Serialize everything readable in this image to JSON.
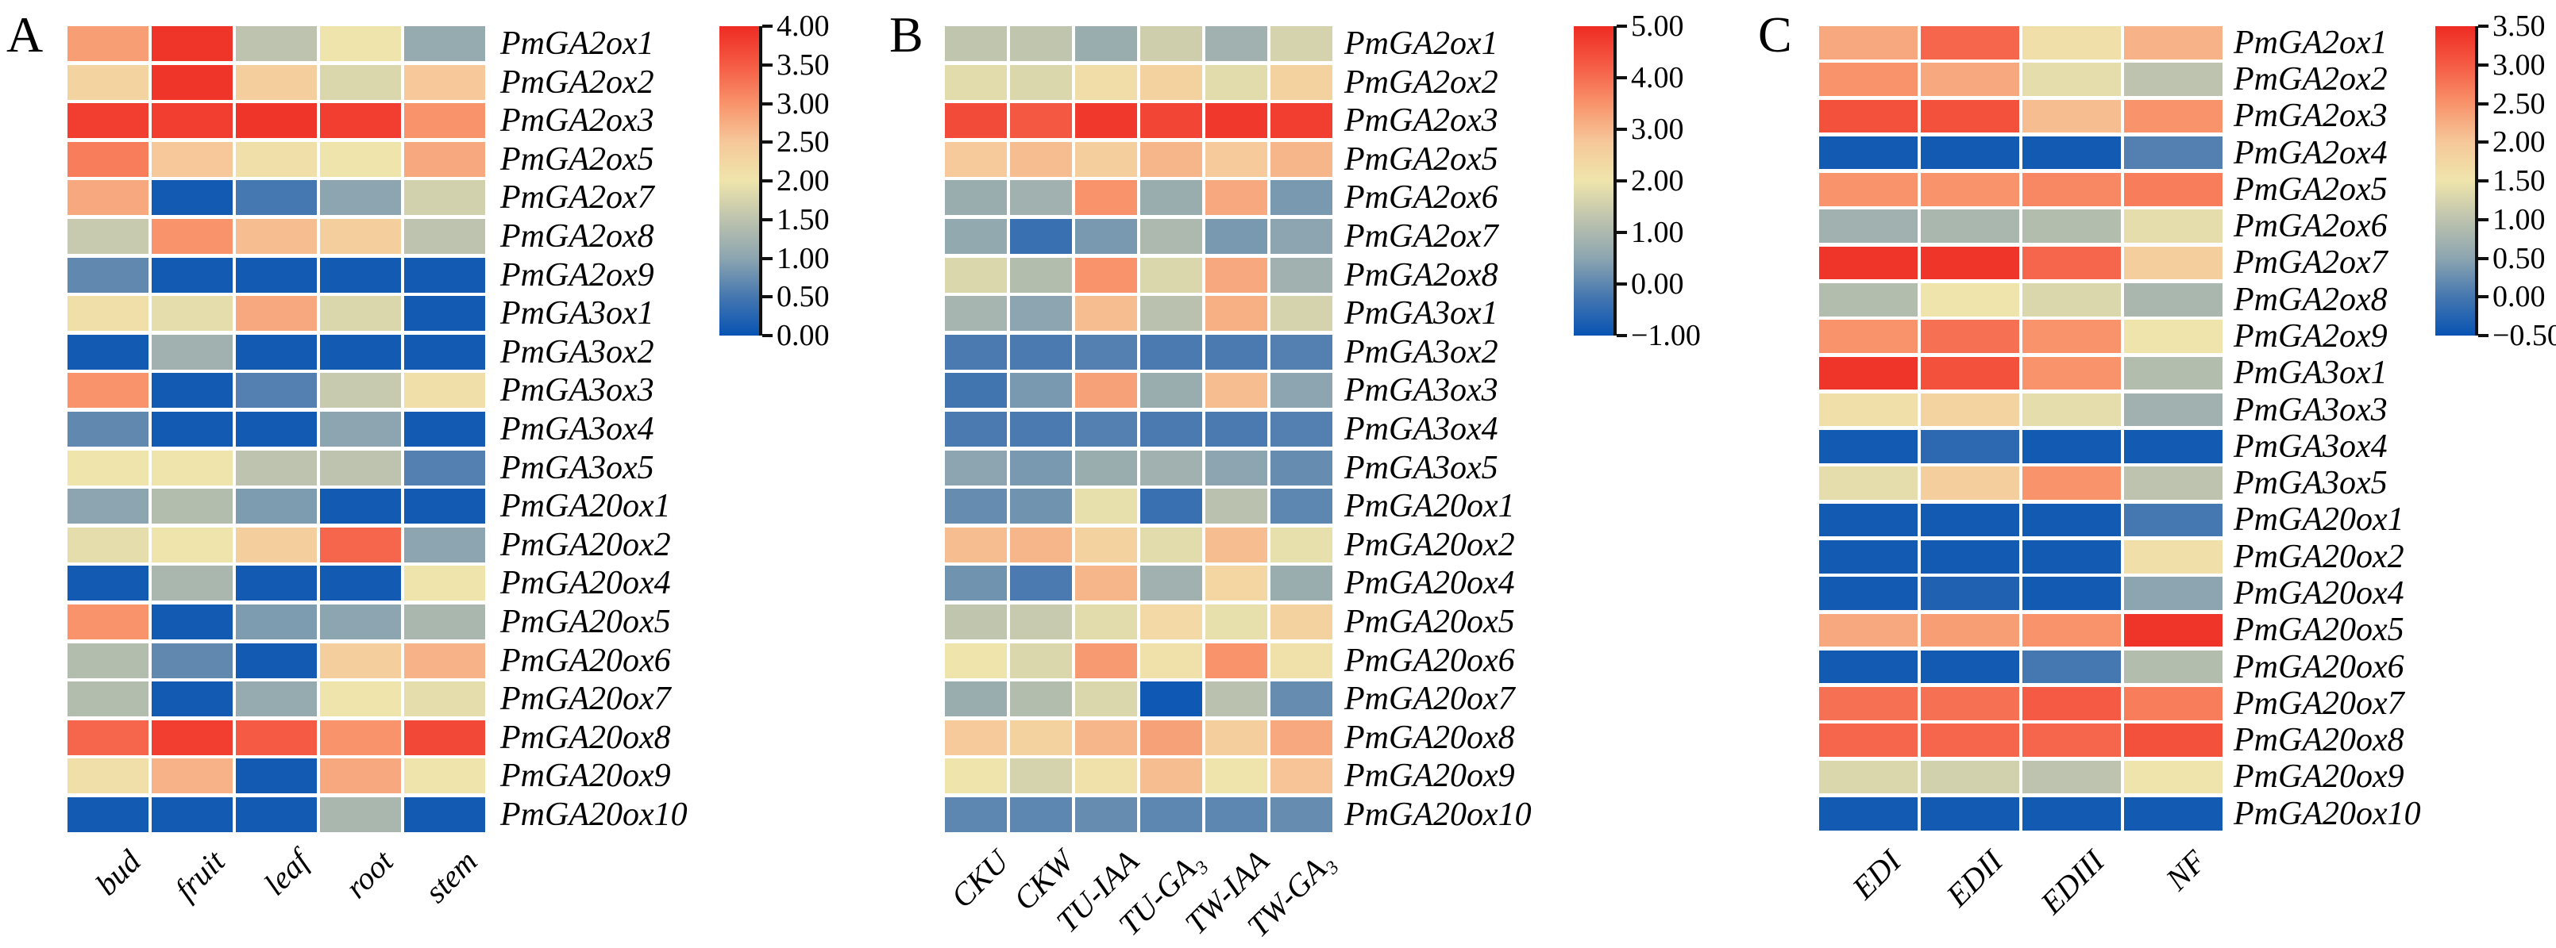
{
  "figure": {
    "background": "#ffffff",
    "text_color": "#000000",
    "colormap": {
      "low_to_high": "blue-gray-yellow-orange-red",
      "stops": [
        {
          "t": 0.0,
          "color": "#0753B3"
        },
        {
          "t": 0.125,
          "color": "#4577B0"
        },
        {
          "t": 0.25,
          "color": "#8CA5B0"
        },
        {
          "t": 0.375,
          "color": "#BDC3AE"
        },
        {
          "t": 0.5,
          "color": "#EFE5AC"
        },
        {
          "t": 0.625,
          "color": "#F6C89A"
        },
        {
          "t": 0.75,
          "color": "#F8936B"
        },
        {
          "t": 0.875,
          "color": "#F55B44"
        },
        {
          "t": 1.0,
          "color": "#EE2B23"
        }
      ]
    }
  },
  "chart_data": [
    {
      "type": "heatmap",
      "panel_label": "A",
      "x_categories": [
        "bud",
        "fruit",
        "leaf",
        "root",
        "stem"
      ],
      "y_categories": [
        "PmGA2ox1",
        "PmGA2ox2",
        "PmGA2ox3",
        "PmGA2ox5",
        "PmGA2ox7",
        "PmGA2ox8",
        "PmGA2ox9",
        "PmGA3ox1",
        "PmGA3ox2",
        "PmGA3ox3",
        "PmGA3ox4",
        "PmGA3ox5",
        "PmGA20ox1",
        "PmGA20ox2",
        "PmGA20ox4",
        "PmGA20ox5",
        "PmGA20ox6",
        "PmGA20ox7",
        "PmGA20ox8",
        "PmGA20ox9",
        "PmGA20ox10"
      ],
      "values": [
        [
          2.9,
          3.9,
          1.5,
          2.0,
          1.1
        ],
        [
          2.3,
          3.9,
          2.4,
          1.8,
          2.5
        ],
        [
          3.8,
          3.8,
          3.9,
          3.8,
          3.0
        ],
        [
          3.2,
          2.5,
          2.1,
          2.0,
          2.8
        ],
        [
          2.8,
          0.1,
          0.5,
          1.0,
          1.7
        ],
        [
          1.6,
          3.0,
          2.6,
          2.4,
          1.5
        ],
        [
          0.7,
          0.1,
          0.1,
          0.1,
          0.1
        ],
        [
          2.1,
          1.9,
          2.8,
          1.8,
          0.1
        ],
        [
          0.1,
          1.2,
          0.1,
          0.1,
          0.1
        ],
        [
          3.0,
          0.1,
          0.6,
          1.6,
          2.1
        ],
        [
          0.7,
          0.1,
          0.1,
          1.0,
          0.1
        ],
        [
          2.0,
          2.0,
          1.5,
          1.5,
          0.6
        ],
        [
          1.0,
          1.4,
          0.9,
          0.1,
          0.1
        ],
        [
          1.9,
          2.0,
          2.4,
          3.4,
          1.0
        ],
        [
          0.1,
          1.3,
          0.1,
          0.1,
          2.0
        ],
        [
          3.0,
          0.1,
          0.9,
          1.0,
          1.3
        ],
        [
          1.4,
          0.7,
          0.1,
          2.4,
          2.7
        ],
        [
          1.4,
          0.1,
          1.1,
          2.0,
          1.9
        ],
        [
          3.4,
          3.8,
          3.5,
          3.0,
          3.7
        ],
        [
          2.1,
          2.7,
          0.1,
          2.8,
          2.0
        ],
        [
          0.1,
          0.1,
          0.1,
          1.3,
          0.1
        ]
      ],
      "colorbar": {
        "min": 0,
        "max": 4,
        "tick_labels": [
          "4.00",
          "3.50",
          "3.00",
          "2.50",
          "2.00",
          "1.50",
          "1.00",
          "0.50",
          "0.00"
        ]
      },
      "legend_position": "right"
    },
    {
      "type": "heatmap",
      "panel_label": "B",
      "x_categories": [
        "CKU",
        "CKW",
        "TU-IAA",
        "TU-GA₃",
        "TW-IAA",
        "TW-GA₃"
      ],
      "y_categories": [
        "PmGA2ox1",
        "PmGA2ox2",
        "PmGA2ox3",
        "PmGA2ox5",
        "PmGA2ox6",
        "PmGA2ox7",
        "PmGA2ox8",
        "PmGA3ox1",
        "PmGA3ox2",
        "PmGA3ox3",
        "PmGA3ox4",
        "PmGA3ox5",
        "PmGA20ox1",
        "PmGA20ox2",
        "PmGA20ox4",
        "PmGA20ox5",
        "PmGA20ox6",
        "PmGA20ox7",
        "PmGA20ox8",
        "PmGA20ox9",
        "PmGA20ox10"
      ],
      "values": [
        [
          1.3,
          1.3,
          0.7,
          1.5,
          0.8,
          1.6
        ],
        [
          1.8,
          1.7,
          2.2,
          2.5,
          1.8,
          2.5
        ],
        [
          4.5,
          4.3,
          4.8,
          4.6,
          4.8,
          4.7
        ],
        [
          2.7,
          2.9,
          2.6,
          3.0,
          2.7,
          3.0
        ],
        [
          0.7,
          0.8,
          3.5,
          0.7,
          3.2,
          0.3
        ],
        [
          0.6,
          -0.4,
          0.3,
          1.0,
          0.3,
          0.5
        ],
        [
          1.7,
          1.1,
          3.5,
          1.7,
          3.2,
          0.8
        ],
        [
          0.9,
          0.5,
          2.9,
          1.2,
          3.1,
          1.6
        ],
        [
          -0.2,
          -0.2,
          -0.1,
          -0.2,
          -0.2,
          -0.1
        ],
        [
          -0.3,
          0.3,
          3.3,
          0.7,
          2.9,
          0.5
        ],
        [
          -0.2,
          -0.2,
          -0.1,
          -0.2,
          -0.2,
          -0.1
        ],
        [
          0.5,
          0.3,
          0.7,
          0.8,
          0.5,
          0.1
        ],
        [
          0.1,
          0.2,
          1.9,
          -0.4,
          1.2,
          0.0
        ],
        [
          2.9,
          3.0,
          2.5,
          1.8,
          2.9,
          1.9
        ],
        [
          0.2,
          -0.2,
          3.0,
          0.8,
          2.4,
          0.7
        ],
        [
          1.3,
          1.4,
          1.8,
          2.3,
          1.9,
          2.5
        ],
        [
          2.0,
          1.7,
          3.4,
          2.1,
          3.5,
          2.1
        ],
        [
          0.7,
          1.1,
          1.7,
          -0.9,
          1.2,
          0.1
        ],
        [
          2.7,
          2.5,
          3.0,
          3.3,
          2.6,
          3.2
        ],
        [
          2.0,
          1.6,
          2.1,
          2.9,
          2.0,
          2.8
        ],
        [
          0.0,
          0.0,
          0.1,
          0.0,
          0.0,
          0.1
        ]
      ],
      "colorbar": {
        "min": -1,
        "max": 5,
        "tick_labels": [
          "5.00",
          "4.00",
          "3.00",
          "2.00",
          "1.00",
          "0.00",
          "−1.00"
        ]
      },
      "legend_position": "right"
    },
    {
      "type": "heatmap",
      "panel_label": "C",
      "x_categories": [
        "EDI",
        "EDII",
        "EDIII",
        "NF"
      ],
      "y_categories": [
        "PmGA2ox1",
        "PmGA2ox2",
        "PmGA2ox3",
        "PmGA2ox4",
        "PmGA2ox5",
        "PmGA2ox6",
        "PmGA2ox7",
        "PmGA2ox8",
        "PmGA2ox9",
        "PmGA3ox1",
        "PmGA3ox3",
        "PmGA3ox4",
        "PmGA3ox5",
        "PmGA20ox1",
        "PmGA20ox2",
        "PmGA20ox4",
        "PmGA20ox5",
        "PmGA20ox6",
        "PmGA20ox7",
        "PmGA20ox8",
        "PmGA20ox9",
        "PmGA20ox10"
      ],
      "values": [
        [
          2.3,
          2.9,
          1.6,
          2.2
        ],
        [
          2.5,
          2.3,
          1.4,
          1.0
        ],
        [
          3.1,
          3.1,
          2.1,
          2.5
        ],
        [
          -0.4,
          -0.4,
          -0.4,
          0.1
        ],
        [
          2.5,
          2.5,
          2.6,
          2.7
        ],
        [
          0.7,
          0.8,
          0.9,
          1.4
        ],
        [
          3.4,
          3.4,
          2.9,
          1.9
        ],
        [
          0.9,
          1.5,
          1.3,
          0.8
        ],
        [
          2.5,
          2.8,
          2.5,
          1.5
        ],
        [
          3.4,
          3.1,
          2.5,
          0.9
        ],
        [
          1.6,
          1.8,
          1.4,
          0.7
        ],
        [
          -0.4,
          -0.2,
          -0.4,
          -0.4
        ],
        [
          1.4,
          1.9,
          2.5,
          1.0
        ],
        [
          -0.4,
          -0.4,
          -0.4,
          0.0
        ],
        [
          -0.4,
          -0.4,
          -0.4,
          1.6
        ],
        [
          -0.4,
          -0.3,
          -0.4,
          0.5
        ],
        [
          2.3,
          2.4,
          2.5,
          3.4
        ],
        [
          -0.4,
          -0.4,
          0.0,
          0.9
        ],
        [
          2.8,
          2.8,
          3.0,
          2.7
        ],
        [
          2.9,
          2.9,
          2.9,
          3.1
        ],
        [
          1.3,
          1.2,
          1.0,
          1.5
        ],
        [
          -0.4,
          -0.4,
          -0.4,
          -0.4
        ]
      ],
      "colorbar": {
        "min": -0.5,
        "max": 3.5,
        "tick_labels": [
          "3.50",
          "3.00",
          "2.50",
          "2.00",
          "1.50",
          "1.00",
          "0.50",
          "0.00",
          "−0.50"
        ]
      },
      "legend_position": "right"
    }
  ]
}
